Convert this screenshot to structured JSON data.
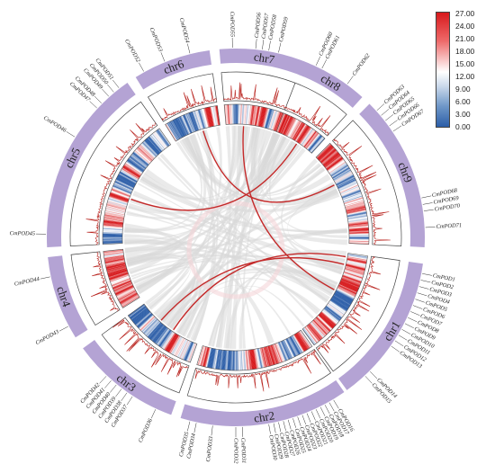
{
  "chromosomes": [
    {
      "name": "chr1",
      "start": 98,
      "end": 144
    },
    {
      "name": "chr2",
      "start": 145,
      "end": 197
    },
    {
      "name": "chr3",
      "start": 200,
      "end": 234
    },
    {
      "name": "chr4",
      "start": 238,
      "end": 264
    },
    {
      "name": "chr5",
      "start": 267,
      "end": 325
    },
    {
      "name": "chr6",
      "start": 328,
      "end": 352
    },
    {
      "name": "chr7",
      "start": 355,
      "end": 383
    },
    {
      "name": "chr8",
      "start": 21,
      "end": 42
    },
    {
      "name": "chr9",
      "start": 45,
      "end": 93
    }
  ],
  "genes": [
    {
      "id": "CmPOD1",
      "chr": "chr1",
      "angle": 101
    },
    {
      "id": "CmPOD2",
      "chr": "chr1",
      "angle": 103
    },
    {
      "id": "CmPOD3",
      "chr": "chr1",
      "angle": 105
    },
    {
      "id": "CmPOD4",
      "chr": "chr1",
      "angle": 107
    },
    {
      "id": "CmPOD5",
      "chr": "chr1",
      "angle": 109
    },
    {
      "id": "CmPOD6",
      "chr": "chr1",
      "angle": 111
    },
    {
      "id": "CmPOD7",
      "chr": "chr1",
      "angle": 113
    },
    {
      "id": "CmPOD8",
      "chr": "chr1",
      "angle": 115
    },
    {
      "id": "CmPOD9",
      "chr": "chr1",
      "angle": 117
    },
    {
      "id": "CmPOD10",
      "chr": "chr1",
      "angle": 119
    },
    {
      "id": "CmPOD11",
      "chr": "chr1",
      "angle": 121
    },
    {
      "id": "CmPOD12",
      "chr": "chr1",
      "angle": 123
    },
    {
      "id": "CmPOD13",
      "chr": "chr1",
      "angle": 125
    },
    {
      "id": "CmPOD14",
      "chr": "chr1",
      "angle": 135
    },
    {
      "id": "CmPOD15",
      "chr": "chr1",
      "angle": 137
    },
    {
      "id": "CmPOD16",
      "chr": "chr2",
      "angle": 149
    },
    {
      "id": "CmPOD17",
      "chr": "chr2",
      "angle": 150.5
    },
    {
      "id": "CmPOD18",
      "chr": "chr2",
      "angle": 152
    },
    {
      "id": "CmPOD19",
      "chr": "chr2",
      "angle": 153.5
    },
    {
      "id": "CmPOD20",
      "chr": "chr2",
      "angle": 155
    },
    {
      "id": "CmPOD21",
      "chr": "chr2",
      "angle": 156.5
    },
    {
      "id": "CmPOD22",
      "chr": "chr2",
      "angle": 158
    },
    {
      "id": "CmPOD23",
      "chr": "chr2",
      "angle": 159.5
    },
    {
      "id": "CmPOD24",
      "chr": "chr2",
      "angle": 161
    },
    {
      "id": "CmPOD25",
      "chr": "chr2",
      "angle": 162.5
    },
    {
      "id": "CmPOD26",
      "chr": "chr2",
      "angle": 164
    },
    {
      "id": "CmPOD27",
      "chr": "chr2",
      "angle": 165.5
    },
    {
      "id": "CmPOD28",
      "chr": "chr2",
      "angle": 167
    },
    {
      "id": "CmPOD29",
      "chr": "chr2",
      "angle": 168.5
    },
    {
      "id": "CmPOD30",
      "chr": "chr2",
      "angle": 170
    },
    {
      "id": "CmPOD31",
      "chr": "chr2",
      "angle": 178
    },
    {
      "id": "CmPOD32",
      "chr": "chr2",
      "angle": 180
    },
    {
      "id": "CmPOD33",
      "chr": "chr2",
      "angle": 187
    },
    {
      "id": "CmPOD34",
      "chr": "chr2",
      "angle": 192
    },
    {
      "id": "CmPOD35",
      "chr": "chr2",
      "angle": 194
    },
    {
      "id": "CmPOD36",
      "chr": "chr3",
      "angle": 205
    },
    {
      "id": "CmPOD37",
      "chr": "chr3",
      "angle": 213
    },
    {
      "id": "CmPOD38",
      "chr": "chr3",
      "angle": 215
    },
    {
      "id": "CmPOD39",
      "chr": "chr3",
      "angle": 217
    },
    {
      "id": "CmPOD40",
      "chr": "chr3",
      "angle": 219
    },
    {
      "id": "CmPOD41",
      "chr": "chr3",
      "angle": 221
    },
    {
      "id": "CmPOD42",
      "chr": "chr3",
      "angle": 223
    },
    {
      "id": "CmPOD43",
      "chr": "chr4",
      "angle": 242
    },
    {
      "id": "CmPOD44",
      "chr": "chr4",
      "angle": 258
    },
    {
      "id": "CmPOD45",
      "chr": "chr5",
      "angle": 271
    },
    {
      "id": "CmPOD46",
      "chr": "chr5",
      "angle": 302
    },
    {
      "id": "CmPOD47",
      "chr": "chr5",
      "angle": 313
    },
    {
      "id": "CmPOD48",
      "chr": "chr5",
      "angle": 315
    },
    {
      "id": "CmPOD49",
      "chr": "chr5",
      "angle": 318
    },
    {
      "id": "CmPOD50",
      "chr": "chr5",
      "angle": 320
    },
    {
      "id": "CmPOD51",
      "chr": "chr5",
      "angle": 322
    },
    {
      "id": "CmPOD52",
      "chr": "chr6",
      "angle": 331
    },
    {
      "id": "CmPOD53",
      "chr": "chr6",
      "angle": 338
    },
    {
      "id": "CmPOD54",
      "chr": "chr6",
      "angle": 346
    },
    {
      "id": "CmPOD55",
      "chr": "chr7",
      "angle": 359
    },
    {
      "id": "CmPOD56",
      "chr": "chr7",
      "angle": 366
    },
    {
      "id": "CmPOD57",
      "chr": "chr7",
      "angle": 368
    },
    {
      "id": "CmPOD58",
      "chr": "chr7",
      "angle": 370
    },
    {
      "id": "CmPOD59",
      "chr": "chr7",
      "angle": 373
    },
    {
      "id": "CmPOD60",
      "chr": "chr8",
      "angle": 25
    },
    {
      "id": "CmPOD61",
      "chr": "chr8",
      "angle": 27
    },
    {
      "id": "CmPOD62",
      "chr": "chr8",
      "angle": 36
    },
    {
      "id": "CmPOD63",
      "chr": "chr9",
      "angle": 48
    },
    {
      "id": "CmPOD64",
      "chr": "chr9",
      "angle": 50
    },
    {
      "id": "CmPOD65",
      "chr": "chr9",
      "angle": 52
    },
    {
      "id": "CmPOD66",
      "chr": "chr9",
      "angle": 54
    },
    {
      "id": "CmPOD67",
      "chr": "chr9",
      "angle": 56
    },
    {
      "id": "CmPOD68",
      "chr": "chr9",
      "angle": 78
    },
    {
      "id": "CmPOD69",
      "chr": "chr9",
      "angle": 80
    },
    {
      "id": "CmPOD70",
      "chr": "chr9",
      "angle": 82
    },
    {
      "id": "CmPOD71",
      "chr": "chr9",
      "angle": 87
    }
  ],
  "red_links": [
    {
      "a": "chr6",
      "a_angle": 343,
      "b": "chr9",
      "b_angle": 62
    },
    {
      "a": "chr5",
      "a_angle": 290,
      "b": "chr8",
      "b_angle": 33
    },
    {
      "a": "chr7",
      "a_angle": 364,
      "b": "chr1",
      "b_angle": 118
    },
    {
      "a": "chr3",
      "a_angle": 214,
      "b": "chr1",
      "b_angle": 100
    },
    {
      "a": "chr3",
      "a_angle": 222,
      "b": "chr1",
      "b_angle": 104
    }
  ],
  "colorbar": {
    "ticks": [
      "27.00",
      "24.00",
      "21.00",
      "18.00",
      "15.00",
      "12.00",
      "9.00",
      "6.00",
      "3.00",
      "0.00"
    ],
    "max_color": "#d7191c",
    "mid_color": "#ffffff",
    "min_color": "#2c5ea8"
  },
  "colors": {
    "chromosome_band": "#b4a3d4",
    "red_link": "#c42a2a",
    "gray_link": "#d8d8d8",
    "line_track": "#b8231e"
  }
}
